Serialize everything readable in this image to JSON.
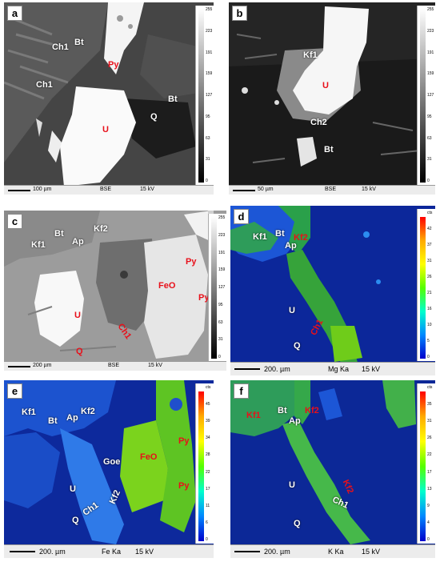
{
  "panels": {
    "a": {
      "letter": "a",
      "labels": {
        "bt": "Bt",
        "ch1_top": "Ch1",
        "py": "Py",
        "ch1_left": "Ch1",
        "bt2": "Bt",
        "q": "Q",
        "u": "U"
      },
      "footer": {
        "scale": "100 µm",
        "mode": "BSE",
        "kv": "15 kV"
      },
      "ticks": [
        "255",
        "223",
        "191",
        "159",
        "127",
        "95",
        "63",
        "31",
        "0"
      ]
    },
    "b": {
      "letter": "b",
      "labels": {
        "kf1": "Kf1",
        "u": "U",
        "ch2": "Ch2",
        "bt": "Bt"
      },
      "footer": {
        "scale": "50 µm",
        "mode": "BSE",
        "kv": "15 kV"
      },
      "ticks": [
        "255",
        "223",
        "191",
        "159",
        "127",
        "95",
        "63",
        "31",
        "0"
      ]
    },
    "c": {
      "letter": "c",
      "labels": {
        "kf1": "Kf1",
        "bt": "Bt",
        "ap": "Ap",
        "kf2": "Kf2",
        "py1": "Py",
        "feo": "FeO",
        "py2": "Py",
        "u": "U",
        "ch1": "Ch1",
        "q": "Q"
      },
      "footer": {
        "scale": "200 µm",
        "mode": "BSE",
        "kv": "15 kV"
      },
      "ticks": [
        "255",
        "223",
        "191",
        "159",
        "127",
        "95",
        "63",
        "31",
        "0"
      ]
    },
    "d": {
      "letter": "d",
      "labels": {
        "kf1": "Kf1",
        "bt": "Bt",
        "kf2": "Kf2",
        "ap": "Ap",
        "u": "U",
        "ch1": "Ch1",
        "q": "Q"
      },
      "footer": {
        "scale": "200. µm",
        "elem": "Mg Ka",
        "kv": "15 kV"
      },
      "ticks": [
        "cts",
        "42",
        "37",
        "31",
        "26",
        "21",
        "16",
        "10",
        "5",
        "0"
      ]
    },
    "e": {
      "letter": "e",
      "labels": {
        "kf1": "Kf1",
        "bt": "Bt",
        "ap": "Ap",
        "kf2": "Kf2",
        "goe": "Goe",
        "feo": "FeO",
        "py1": "Py",
        "u": "U",
        "ch1": "Ch1",
        "kf2b": "Kf2",
        "py2": "Py",
        "q": "Q"
      },
      "footer": {
        "scale": "200. µm",
        "elem": "Fe Ka",
        "kv": "15 kV"
      },
      "ticks": [
        "cts",
        "45",
        "39",
        "34",
        "28",
        "22",
        "17",
        "11",
        "6",
        "0"
      ]
    },
    "f": {
      "letter": "f",
      "labels": {
        "kf1": "Kf1",
        "bt": "Bt",
        "kf2": "Kf2",
        "ap": "Ap",
        "u": "U",
        "ch1": "Ch1",
        "kf2b": "Kf2",
        "q": "Q"
      },
      "footer": {
        "scale": "200. µm",
        "elem": "K  Ka",
        "kv": "15 kV"
      },
      "ticks": [
        "cts",
        "35",
        "31",
        "26",
        "22",
        "17",
        "13",
        "9",
        "4",
        "0"
      ]
    }
  }
}
